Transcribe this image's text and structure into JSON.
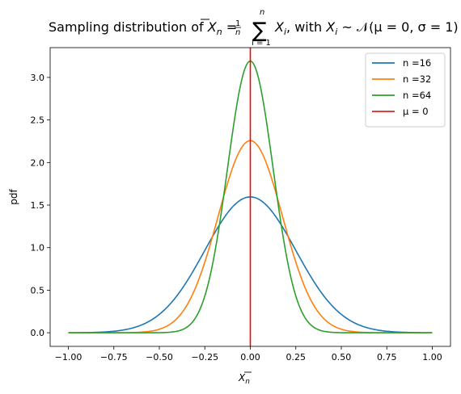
{
  "chart_data": {
    "type": "line",
    "title": {
      "lead": "Sampling distribution of ",
      "xbar": "X",
      "xbar_sub": "n",
      "eq": " = ",
      "frac_num": "1",
      "frac_den": "n",
      "sum": "∑",
      "sum_upper": "n",
      "sum_lower": "i = 1",
      "xi": "X",
      "xi_sub": "i",
      "with": ", with ",
      "xi2": "X",
      "xi2_sub": "i",
      "dist": " ~ 𝒩(μ = 0, σ = 1)"
    },
    "xlabel": {
      "main": "X",
      "sub": "n"
    },
    "ylabel": "pdf",
    "xlim": [
      -1.1,
      1.1
    ],
    "ylim": [
      -0.16,
      3.35
    ],
    "x_ticks": [
      -1.0,
      -0.75,
      -0.5,
      -0.25,
      0.0,
      0.25,
      0.5,
      0.75,
      1.0
    ],
    "x_tick_labels": [
      "−1.00",
      "−0.75",
      "−0.50",
      "−0.25",
      "0.00",
      "0.25",
      "0.50",
      "0.75",
      "1.00"
    ],
    "y_ticks": [
      0.0,
      0.5,
      1.0,
      1.5,
      2.0,
      2.5,
      3.0
    ],
    "y_tick_labels": [
      "0.0",
      "0.5",
      "1.0",
      "1.5",
      "2.0",
      "2.5",
      "3.0"
    ],
    "x_range": [
      -1.0,
      1.0
    ],
    "mu": 0,
    "sigma": 1,
    "series": [
      {
        "name": "n =16",
        "n": 16,
        "color": "#1f77b4"
      },
      {
        "name": "n =32",
        "n": 32,
        "color": "#ff7f0e"
      },
      {
        "name": "n =64",
        "n": 64,
        "color": "#2ca02c"
      }
    ],
    "vline": {
      "name": "μ = 0",
      "x": 0,
      "color": "#d62728",
      "line_color": "#ff0000"
    },
    "legend_position": "top-right",
    "grid": false
  }
}
